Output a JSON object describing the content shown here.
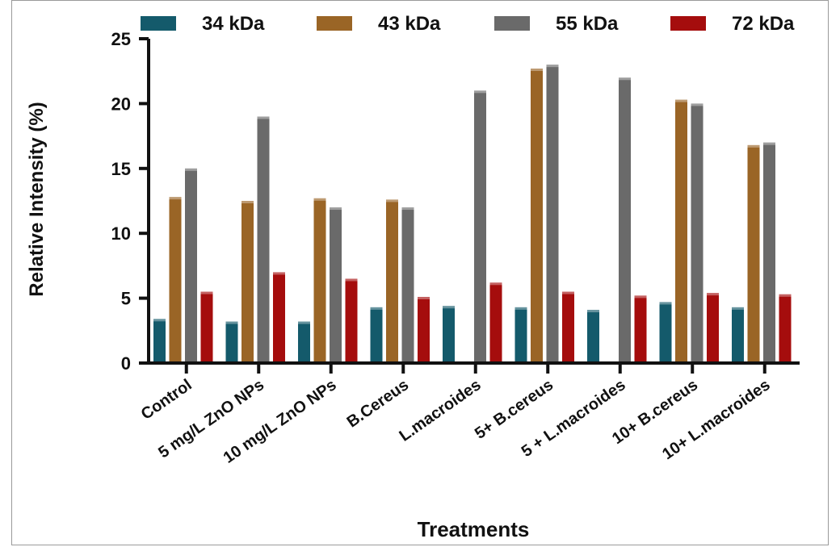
{
  "chart_data": {
    "type": "bar",
    "title": "",
    "xlabel": "Treatments",
    "ylabel": "Relative Intensity (%)",
    "ylim": [
      0,
      25
    ],
    "yticks": [
      "0",
      "5",
      "10",
      "15",
      "20",
      "25"
    ],
    "legend_position": "top",
    "categories": [
      "Control",
      "5 mg/L ZnO NPs",
      "10 mg/L ZnO NPs",
      "B.Cereus",
      "L.macroides",
      "5+ B.cereus",
      "5 + L.macroides",
      "10+ B.cereus",
      "10+ L.macroides"
    ],
    "series": [
      {
        "name": "34 kDa",
        "color": "#145a6b",
        "values": [
          3.4,
          3.2,
          3.2,
          4.3,
          4.4,
          4.3,
          4.1,
          4.7,
          4.3
        ]
      },
      {
        "name": "43 kDa",
        "color": "#9a6526",
        "values": [
          12.8,
          12.5,
          12.7,
          12.6,
          0,
          22.7,
          0,
          20.3,
          16.8
        ]
      },
      {
        "name": "55 kDa",
        "color": "#6a6a6a",
        "values": [
          15.0,
          19.0,
          12.0,
          12.0,
          21.0,
          23.0,
          22.0,
          20.0,
          17.0
        ]
      },
      {
        "name": "72 kDa",
        "color": "#a50d0d",
        "values": [
          5.5,
          7.0,
          6.5,
          5.1,
          6.2,
          5.5,
          5.2,
          5.4,
          5.3
        ]
      }
    ]
  }
}
